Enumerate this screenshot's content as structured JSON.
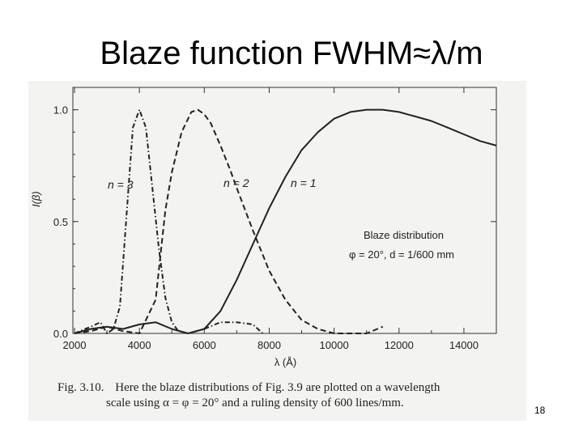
{
  "slide": {
    "title": "Blaze function FWHM≈λ/m",
    "page_number": "18"
  },
  "caption": {
    "fig_label": "Fig. 3.10.",
    "line1": "Here the blaze distributions of Fig. 3.9 are plotted on a wavelength",
    "line2": "scale using α = φ = 20° and a ruling density of 600 lines/mm."
  },
  "chart_data": {
    "type": "line",
    "title": "",
    "xlabel": "λ (Å)",
    "ylabel": "I(β)",
    "xlim": [
      1950,
      15000
    ],
    "ylim": [
      0,
      1.1
    ],
    "x_ticks": [
      2000,
      4000,
      6000,
      8000,
      10000,
      12000,
      14000
    ],
    "y_ticks": [
      0.0,
      0.5,
      1.0
    ],
    "y_tick_labels": [
      "0.0",
      "0.5",
      "1.0"
    ],
    "grid": false,
    "annotations": [
      "Blaze distribution",
      "φ = 20°, d = 1/600 mm"
    ],
    "series": [
      {
        "name": "n = 1",
        "style": "solid",
        "x": [
          2000,
          2500,
          3000,
          3500,
          4000,
          4500,
          5000,
          5500,
          6000,
          6500,
          7000,
          7500,
          8000,
          8500,
          9000,
          9500,
          10000,
          10500,
          11000,
          11500,
          12000,
          12500,
          13000,
          13500,
          14000,
          14500,
          15000
        ],
        "y": [
          0.0,
          0.02,
          0.03,
          0.02,
          0.04,
          0.05,
          0.02,
          0.0,
          0.02,
          0.1,
          0.24,
          0.4,
          0.56,
          0.7,
          0.82,
          0.9,
          0.96,
          0.99,
          1.0,
          1.0,
          0.99,
          0.97,
          0.95,
          0.92,
          0.89,
          0.86,
          0.84
        ]
      },
      {
        "name": "n = 2",
        "style": "dashed",
        "x": [
          2000,
          2500,
          3000,
          3500,
          4000,
          4500,
          4800,
          5000,
          5300,
          5600,
          5800,
          6000,
          6200,
          6500,
          6800,
          7000,
          7500,
          8000,
          8500,
          9000,
          9500,
          10000,
          10500,
          11000,
          11500
        ],
        "y": [
          0.0,
          0.01,
          0.03,
          0.01,
          0.0,
          0.15,
          0.55,
          0.72,
          0.9,
          0.99,
          1.0,
          0.98,
          0.94,
          0.84,
          0.73,
          0.65,
          0.46,
          0.28,
          0.15,
          0.06,
          0.02,
          0.0,
          0.0,
          0.0,
          0.03
        ]
      },
      {
        "name": "n = 3",
        "style": "dash-dot",
        "x": [
          2000,
          2500,
          2800,
          3000,
          3200,
          3400,
          3600,
          3800,
          4000,
          4200,
          4400,
          4600,
          4800,
          5000,
          5200,
          5500,
          6000,
          6500,
          7000,
          7500,
          7800
        ],
        "y": [
          0.0,
          0.03,
          0.05,
          0.0,
          0.02,
          0.12,
          0.52,
          0.92,
          1.0,
          0.92,
          0.65,
          0.38,
          0.16,
          0.05,
          0.01,
          0.0,
          0.02,
          0.05,
          0.05,
          0.04,
          0.0
        ]
      }
    ]
  }
}
